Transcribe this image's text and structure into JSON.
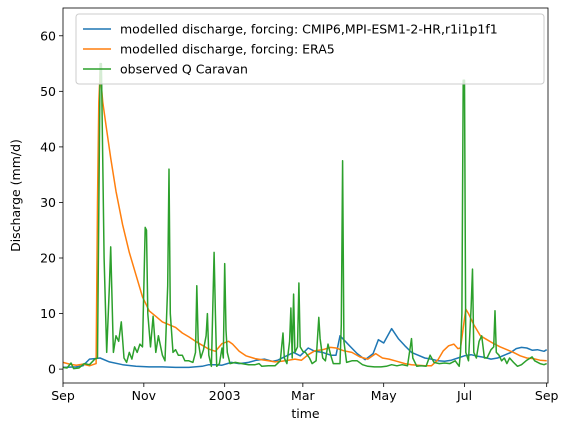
{
  "chart_data": {
    "type": "line",
    "xlabel": "time",
    "ylabel": "Discharge (mm/d)",
    "xlim": [
      0,
      366
    ],
    "ylim": [
      -2.5,
      65
    ],
    "x_ticks": [
      {
        "pos": 0,
        "label": "Sep"
      },
      {
        "pos": 61,
        "label": "Nov"
      },
      {
        "pos": 122,
        "label": "2003"
      },
      {
        "pos": 181,
        "label": "Mar"
      },
      {
        "pos": 242,
        "label": "May"
      },
      {
        "pos": 303,
        "label": "Jul"
      },
      {
        "pos": 365,
        "label": "Sep"
      }
    ],
    "y_ticks": [
      0,
      10,
      20,
      30,
      40,
      50,
      60
    ],
    "legend_position": "top-right",
    "series": [
      {
        "name": "modelled discharge, forcing: CMIP6,MPI-ESM1-2-HR,r1i1p1f1",
        "color": "#1f77b4",
        "points": [
          [
            0,
            0.3
          ],
          [
            10,
            0.4
          ],
          [
            15,
            0.6
          ],
          [
            20,
            1.8
          ],
          [
            24,
            1.9
          ],
          [
            28,
            2.0
          ],
          [
            35,
            1.3
          ],
          [
            45,
            0.8
          ],
          [
            55,
            0.5
          ],
          [
            65,
            0.4
          ],
          [
            75,
            0.4
          ],
          [
            85,
            0.3
          ],
          [
            95,
            0.3
          ],
          [
            105,
            0.5
          ],
          [
            110,
            0.8
          ],
          [
            115,
            0.8
          ],
          [
            120,
            0.7
          ],
          [
            124,
            1.0
          ],
          [
            127,
            1.2
          ],
          [
            133,
            1.0
          ],
          [
            140,
            1.2
          ],
          [
            146,
            1.6
          ],
          [
            152,
            1.8
          ],
          [
            158,
            1.4
          ],
          [
            162,
            1.6
          ],
          [
            168,
            2.3
          ],
          [
            174,
            3.0
          ],
          [
            179,
            2.4
          ],
          [
            185,
            3.8
          ],
          [
            190,
            3.2
          ],
          [
            196,
            3.0
          ],
          [
            202,
            2.5
          ],
          [
            206,
            2.5
          ],
          [
            209,
            6.0
          ],
          [
            213,
            5.0
          ],
          [
            217,
            4.0
          ],
          [
            222,
            2.8
          ],
          [
            228,
            1.7
          ],
          [
            234,
            2.8
          ],
          [
            238,
            5.3
          ],
          [
            242,
            4.7
          ],
          [
            248,
            7.3
          ],
          [
            253,
            5.5
          ],
          [
            258,
            4.2
          ],
          [
            263,
            3.0
          ],
          [
            268,
            2.5
          ],
          [
            273,
            2.0
          ],
          [
            278,
            1.8
          ],
          [
            283,
            1.5
          ],
          [
            288,
            1.4
          ],
          [
            293,
            1.6
          ],
          [
            298,
            2.0
          ],
          [
            303,
            2.4
          ],
          [
            308,
            2.6
          ],
          [
            313,
            2.3
          ],
          [
            318,
            2.1
          ],
          [
            323,
            1.8
          ],
          [
            328,
            2.0
          ],
          [
            333,
            2.5
          ],
          [
            338,
            3.0
          ],
          [
            342,
            3.7
          ],
          [
            346,
            3.9
          ],
          [
            350,
            3.8
          ],
          [
            354,
            3.4
          ],
          [
            358,
            3.5
          ],
          [
            363,
            3.2
          ],
          [
            365,
            3.5
          ]
        ]
      },
      {
        "name": "modelled discharge, forcing: ERA5",
        "color": "#ff7f0e",
        "points": [
          [
            0,
            1.2
          ],
          [
            5,
            0.9
          ],
          [
            10,
            0.7
          ],
          [
            15,
            0.9
          ],
          [
            20,
            0.6
          ],
          [
            25,
            1.0
          ],
          [
            26,
            30
          ],
          [
            27,
            48
          ],
          [
            28,
            53.5
          ],
          [
            30,
            48
          ],
          [
            33,
            43
          ],
          [
            36,
            38
          ],
          [
            40,
            32
          ],
          [
            45,
            26
          ],
          [
            50,
            21
          ],
          [
            55,
            17
          ],
          [
            60,
            13
          ],
          [
            63,
            11.5
          ],
          [
            65,
            10.5
          ],
          [
            70,
            9.5
          ],
          [
            75,
            8.5
          ],
          [
            80,
            8.0
          ],
          [
            85,
            7.5
          ],
          [
            90,
            6.5
          ],
          [
            95,
            5.8
          ],
          [
            100,
            5.0
          ],
          [
            105,
            4.3
          ],
          [
            110,
            3.6
          ],
          [
            115,
            3.2
          ],
          [
            120,
            4.6
          ],
          [
            125,
            5.0
          ],
          [
            128,
            4.5
          ],
          [
            133,
            3.2
          ],
          [
            138,
            2.4
          ],
          [
            145,
            1.9
          ],
          [
            150,
            1.7
          ],
          [
            155,
            1.5
          ],
          [
            160,
            1.3
          ],
          [
            165,
            1.4
          ],
          [
            170,
            1.6
          ],
          [
            175,
            1.8
          ],
          [
            180,
            1.6
          ],
          [
            185,
            2.6
          ],
          [
            190,
            3.3
          ],
          [
            196,
            3.5
          ],
          [
            202,
            3.9
          ],
          [
            206,
            3.8
          ],
          [
            212,
            3.3
          ],
          [
            218,
            3.0
          ],
          [
            224,
            2.2
          ],
          [
            230,
            1.8
          ],
          [
            236,
            2.8
          ],
          [
            241,
            2.0
          ],
          [
            246,
            1.8
          ],
          [
            252,
            1.4
          ],
          [
            258,
            1.0
          ],
          [
            263,
            0.8
          ],
          [
            268,
            0.7
          ],
          [
            273,
            0.6
          ],
          [
            278,
            0.6
          ],
          [
            283,
            1.7
          ],
          [
            287,
            3.3
          ],
          [
            291,
            4.2
          ],
          [
            295,
            4.5
          ],
          [
            298,
            3.7
          ],
          [
            300,
            3.8
          ],
          [
            304,
            10.8
          ],
          [
            306,
            10.0
          ],
          [
            310,
            8.0
          ],
          [
            315,
            6.0
          ],
          [
            320,
            5.3
          ],
          [
            325,
            4.6
          ],
          [
            330,
            4.0
          ],
          [
            335,
            3.5
          ],
          [
            340,
            3.0
          ],
          [
            345,
            2.4
          ],
          [
            350,
            2.0
          ],
          [
            355,
            1.9
          ],
          [
            360,
            1.6
          ],
          [
            365,
            1.5
          ]
        ]
      },
      {
        "name": "observed Q Caravan",
        "color": "#2ca02c",
        "points": [
          [
            0,
            0.3
          ],
          [
            3,
            0.2
          ],
          [
            6,
            1.1
          ],
          [
            8,
            0.1
          ],
          [
            12,
            0.2
          ],
          [
            16,
            1.0
          ],
          [
            20,
            0.8
          ],
          [
            24,
            1.8
          ],
          [
            26,
            2.0
          ],
          [
            28,
            55
          ],
          [
            29,
            55
          ],
          [
            31,
            20
          ],
          [
            33,
            3.0
          ],
          [
            35,
            15
          ],
          [
            36,
            22
          ],
          [
            38,
            3
          ],
          [
            40,
            6
          ],
          [
            42,
            5
          ],
          [
            44,
            8.5
          ],
          [
            46,
            2
          ],
          [
            48,
            1.2
          ],
          [
            50,
            3
          ],
          [
            52,
            1.8
          ],
          [
            54,
            4
          ],
          [
            56,
            3
          ],
          [
            58,
            4.5
          ],
          [
            60,
            4
          ],
          [
            62,
            25.5
          ],
          [
            63,
            25
          ],
          [
            64,
            10
          ],
          [
            66,
            4
          ],
          [
            68,
            9.5
          ],
          [
            70,
            3
          ],
          [
            72,
            6
          ],
          [
            75,
            2.5
          ],
          [
            77,
            1.5
          ],
          [
            79,
            15
          ],
          [
            80,
            36
          ],
          [
            81,
            10
          ],
          [
            83,
            3
          ],
          [
            85,
            3.5
          ],
          [
            87,
            2.5
          ],
          [
            90,
            2.5
          ],
          [
            92,
            1.5
          ],
          [
            95,
            1.5
          ],
          [
            98,
            1.2
          ],
          [
            100,
            3
          ],
          [
            101,
            15
          ],
          [
            102,
            5
          ],
          [
            104,
            2
          ],
          [
            106,
            3.5
          ],
          [
            108,
            6
          ],
          [
            109,
            10
          ],
          [
            110,
            2.5
          ],
          [
            112,
            0.5
          ],
          [
            114,
            21
          ],
          [
            115,
            10
          ],
          [
            116,
            0.5
          ],
          [
            118,
            1
          ],
          [
            120,
            3.8
          ],
          [
            121,
            2
          ],
          [
            122,
            19
          ],
          [
            123,
            7
          ],
          [
            124,
            3
          ],
          [
            126,
            1
          ],
          [
            130,
            1.2
          ],
          [
            135,
            1.0
          ],
          [
            140,
            0.8
          ],
          [
            145,
            0.8
          ],
          [
            148,
            1.0
          ],
          [
            150,
            0.5
          ],
          [
            155,
            0.6
          ],
          [
            160,
            0.6
          ],
          [
            164,
            1.5
          ],
          [
            166,
            6.5
          ],
          [
            167,
            2
          ],
          [
            169,
            1.0
          ],
          [
            171,
            5
          ],
          [
            172,
            11
          ],
          [
            173,
            2
          ],
          [
            174,
            13.5
          ],
          [
            175,
            3
          ],
          [
            177,
            4
          ],
          [
            178,
            15.5
          ],
          [
            179,
            4
          ],
          [
            181,
            3.2
          ],
          [
            183,
            3.0
          ],
          [
            186,
            2.0
          ],
          [
            188,
            1.0
          ],
          [
            191,
            1.5
          ],
          [
            193,
            9.3
          ],
          [
            194,
            5.5
          ],
          [
            196,
            2
          ],
          [
            198,
            1.5
          ],
          [
            200,
            4.5
          ],
          [
            202,
            2.5
          ],
          [
            204,
            1
          ],
          [
            206,
            1.0
          ],
          [
            209,
            1.0
          ],
          [
            210,
            8
          ],
          [
            211,
            37.5
          ],
          [
            212,
            5
          ],
          [
            214,
            1.2
          ],
          [
            218,
            1.5
          ],
          [
            222,
            1.5
          ],
          [
            226,
            0.8
          ],
          [
            230,
            0.5
          ],
          [
            235,
            0.4
          ],
          [
            240,
            0.4
          ],
          [
            244,
            0.5
          ],
          [
            248,
            0.8
          ],
          [
            252,
            0.6
          ],
          [
            256,
            0.8
          ],
          [
            260,
            0.6
          ],
          [
            263,
            5.5
          ],
          [
            264,
            2
          ],
          [
            267,
            0.5
          ],
          [
            270,
            0.6
          ],
          [
            274,
            0.5
          ],
          [
            277,
            2.5
          ],
          [
            280,
            1.2
          ],
          [
            284,
            1.0
          ],
          [
            288,
            1.1
          ],
          [
            292,
            1.0
          ],
          [
            296,
            1.5
          ],
          [
            299,
            0.5
          ],
          [
            300,
            3.0
          ],
          [
            301,
            10
          ],
          [
            302,
            52
          ],
          [
            303,
            52
          ],
          [
            304,
            3
          ],
          [
            306,
            1.5
          ],
          [
            308,
            11
          ],
          [
            309,
            18
          ],
          [
            310,
            3
          ],
          [
            312,
            2
          ],
          [
            314,
            5
          ],
          [
            316,
            6
          ],
          [
            318,
            2
          ],
          [
            320,
            2
          ],
          [
            323,
            3.5
          ],
          [
            325,
            4
          ],
          [
            326,
            10.5
          ],
          [
            327,
            3
          ],
          [
            329,
            2.5
          ],
          [
            331,
            1.5
          ],
          [
            333,
            2
          ],
          [
            335,
            1
          ],
          [
            337,
            2
          ],
          [
            340,
            1.2
          ],
          [
            343,
            0.5
          ],
          [
            346,
            0.8
          ],
          [
            350,
            1.6
          ],
          [
            354,
            2.2
          ],
          [
            356,
            1.5
          ],
          [
            360,
            1
          ],
          [
            363,
            0.8
          ],
          [
            365,
            1.0
          ]
        ]
      }
    ]
  }
}
